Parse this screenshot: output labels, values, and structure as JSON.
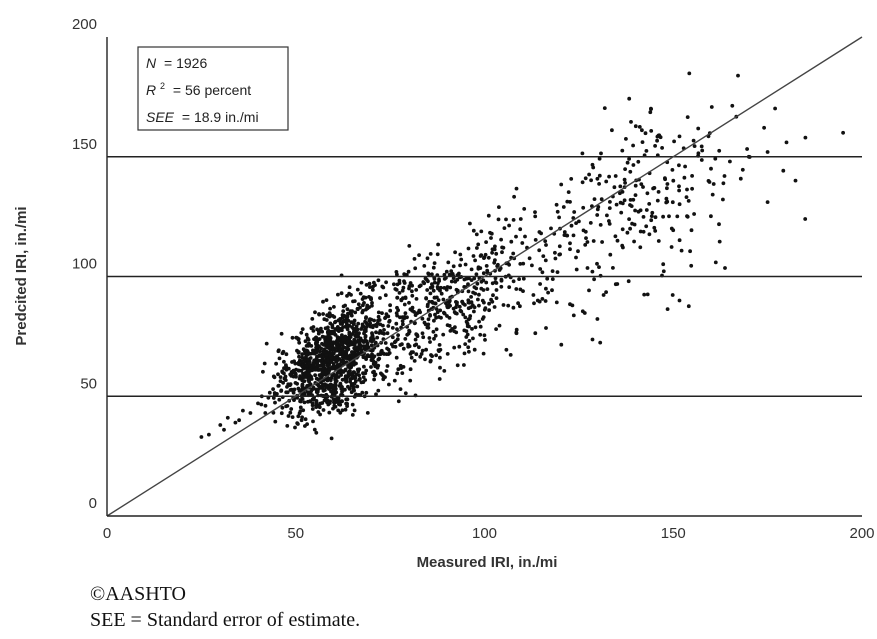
{
  "chart_data": {
    "type": "scatter",
    "title": "",
    "xlabel": "Measured IRI, in./mi",
    "ylabel": "Predcited IRI, in./mi",
    "xlim": [
      0,
      200
    ],
    "ylim": [
      0,
      200
    ],
    "x_ticks": [
      "0",
      "50",
      "100",
      "150",
      "200"
    ],
    "y_ticks": [
      "0",
      "50",
      "100",
      "150",
      "200"
    ],
    "gridlines_y": [
      50,
      100,
      150
    ],
    "reference_line": "line of equality",
    "point_color": "#111111",
    "stats": {
      "n_label": "N",
      "n_value": "= 1926",
      "r2_label": "R",
      "r2_sup": "2",
      "r2_value": "= 56 percent",
      "see_label": "SEE",
      "see_value": "= 18.9 in./mi"
    },
    "n_points": 1926,
    "series": [
      {
        "x": [
          25,
          27,
          30,
          31,
          32,
          34,
          35,
          36,
          38,
          40,
          41,
          42,
          44,
          45,
          46,
          48,
          50,
          52,
          55,
          58,
          60,
          62,
          65,
          68,
          70,
          72,
          75,
          78,
          80,
          85,
          90,
          95,
          100,
          105,
          110,
          115,
          120,
          125,
          130,
          135,
          140,
          145,
          150,
          155,
          160,
          165,
          170,
          175,
          180,
          185,
          195
        ],
        "y": [
          33,
          34,
          38,
          36,
          41,
          39,
          40,
          44,
          43,
          47,
          50,
          46,
          53,
          51,
          58,
          55,
          59,
          62,
          65,
          68,
          70,
          73,
          76,
          79,
          82,
          85,
          88,
          90,
          95,
          98,
          102,
          105,
          108,
          112,
          114,
          118,
          120,
          123,
          128,
          130,
          134,
          137,
          140,
          142,
          145,
          148,
          150,
          152,
          156,
          158,
          160
        ]
      }
    ]
  },
  "caption": {
    "copyright": "©AASHTO",
    "note": "SEE = Standard error of estimate."
  }
}
